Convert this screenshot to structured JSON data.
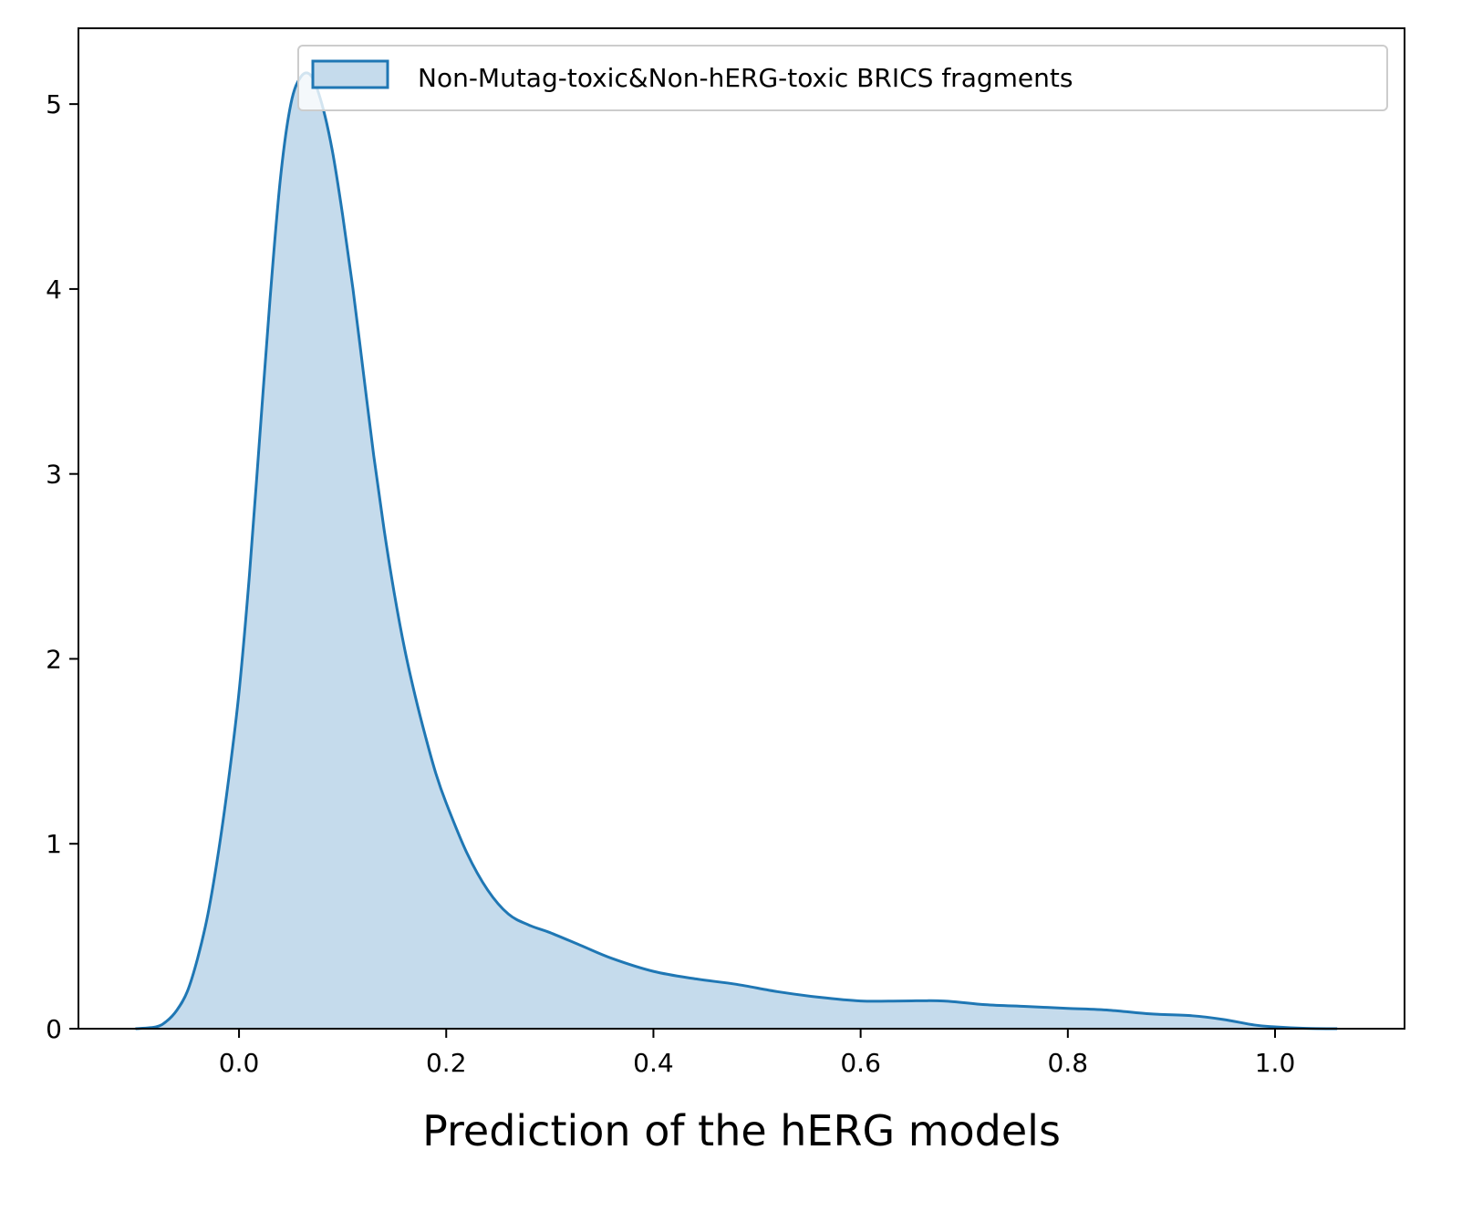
{
  "chart_data": {
    "type": "area",
    "title": "",
    "xlabel": "Prediction of the hERG models",
    "ylabel": "",
    "xlim": [
      -0.155,
      1.125
    ],
    "ylim": [
      0,
      5.41
    ],
    "x_ticks": [
      0.0,
      0.2,
      0.4,
      0.6,
      0.8,
      1.0
    ],
    "x_tick_labels": [
      "0.0",
      "0.2",
      "0.4",
      "0.6",
      "0.8",
      "1.0"
    ],
    "y_ticks": [
      0,
      1,
      2,
      3,
      4,
      5
    ],
    "y_tick_labels": [
      "0",
      "1",
      "2",
      "3",
      "4",
      "5"
    ],
    "grid": false,
    "legend_position": "top-right",
    "colors": {
      "line": "#1f77b4",
      "fill": "#c5dbec"
    },
    "series": [
      {
        "name": "Non-Mutag-toxic&Non-hERG-toxic BRICS fragments",
        "x": [
          -0.1,
          -0.08,
          -0.07,
          -0.06,
          -0.05,
          -0.04,
          -0.03,
          -0.02,
          -0.01,
          0.0,
          0.01,
          0.02,
          0.03,
          0.04,
          0.05,
          0.06,
          0.07,
          0.08,
          0.09,
          0.1,
          0.11,
          0.12,
          0.13,
          0.14,
          0.15,
          0.16,
          0.17,
          0.18,
          0.19,
          0.2,
          0.22,
          0.24,
          0.26,
          0.28,
          0.3,
          0.33,
          0.36,
          0.4,
          0.44,
          0.48,
          0.52,
          0.56,
          0.6,
          0.64,
          0.68,
          0.72,
          0.76,
          0.8,
          0.84,
          0.88,
          0.92,
          0.95,
          0.98,
          1.0,
          1.03,
          1.06
        ],
        "y": [
          0.0,
          0.01,
          0.04,
          0.1,
          0.2,
          0.38,
          0.62,
          0.95,
          1.35,
          1.82,
          2.45,
          3.2,
          3.95,
          4.6,
          5.0,
          5.15,
          5.15,
          5.0,
          4.75,
          4.4,
          4.0,
          3.55,
          3.1,
          2.7,
          2.35,
          2.05,
          1.8,
          1.58,
          1.38,
          1.22,
          0.95,
          0.75,
          0.62,
          0.56,
          0.52,
          0.45,
          0.38,
          0.31,
          0.27,
          0.24,
          0.2,
          0.17,
          0.15,
          0.15,
          0.15,
          0.13,
          0.12,
          0.11,
          0.1,
          0.08,
          0.07,
          0.05,
          0.02,
          0.01,
          0.002,
          0.0
        ]
      }
    ]
  }
}
